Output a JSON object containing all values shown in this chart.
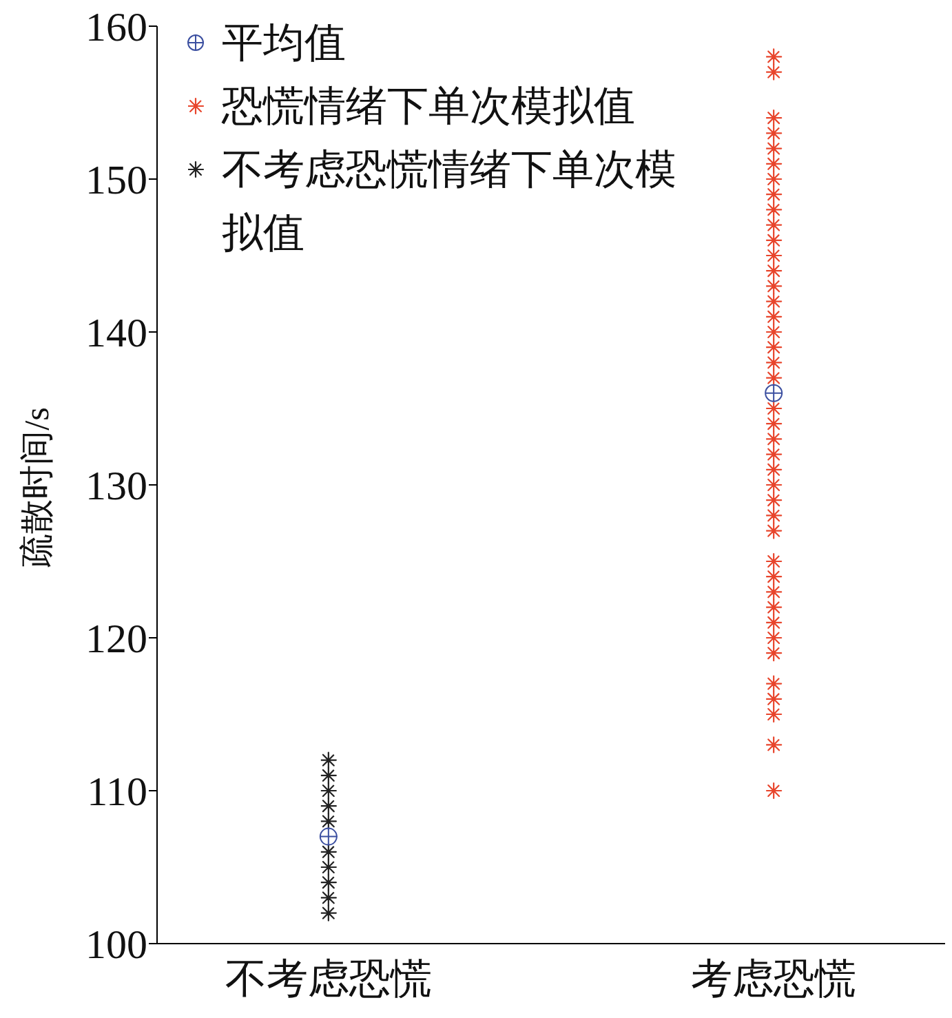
{
  "chart_data": {
    "type": "scatter",
    "ylabel": "疏散时间/s",
    "categories": [
      "不考虑恐慌",
      "考虑恐慌"
    ],
    "ylim": [
      100,
      160
    ],
    "yticks": [
      100,
      110,
      120,
      130,
      140,
      150,
      160
    ],
    "legend": "top left",
    "series": [
      {
        "name": "平均值",
        "color": "#3b4fa0",
        "marker": "circle",
        "x": [
          "不考虑恐慌",
          "考虑恐慌"
        ],
        "values": [
          107,
          136
        ]
      },
      {
        "name": "恐慌情绪下单次模拟值",
        "color": "#e8452c",
        "marker": "cross",
        "x": [
          "考虑恐慌",
          "考虑恐慌",
          "考虑恐慌",
          "考虑恐慌",
          "考虑恐慌",
          "考虑恐慌",
          "考虑恐慌",
          "考虑恐慌",
          "考虑恐慌",
          "考虑恐慌",
          "考虑恐慌",
          "考虑恐慌",
          "考虑恐慌",
          "考虑恐慌",
          "考虑恐慌",
          "考虑恐慌",
          "考虑恐慌",
          "考虑恐慌",
          "考虑恐慌",
          "考虑恐慌",
          "考虑恐慌",
          "考虑恐慌",
          "考虑恐慌",
          "考虑恐慌",
          "考虑恐慌",
          "考虑恐慌",
          "考虑恐慌",
          "考虑恐慌",
          "考虑恐慌",
          "考虑恐慌",
          "考虑恐慌",
          "考虑恐慌",
          "考虑恐慌",
          "考虑恐慌",
          "考虑恐慌",
          "考虑恐慌",
          "考虑恐慌",
          "考虑恐慌",
          "考虑恐慌",
          "考虑恐慌",
          "考虑恐慌"
        ],
        "values": [
          110,
          113,
          115,
          116,
          117,
          119,
          120,
          121,
          122,
          123,
          124,
          125,
          127,
          128,
          129,
          130,
          131,
          132,
          133,
          134,
          135,
          137,
          138,
          139,
          140,
          141,
          142,
          143,
          144,
          145,
          146,
          147,
          148,
          149,
          150,
          151,
          152,
          153,
          154,
          157,
          158
        ]
      },
      {
        "name": "不考虑恐慌情绪下单次模拟值",
        "color": "#222222",
        "marker": "cross",
        "x": [
          "不考虑恐慌",
          "不考虑恐慌",
          "不考虑恐慌",
          "不考虑恐慌",
          "不考虑恐慌",
          "不考虑恐慌",
          "不考虑恐慌",
          "不考虑恐慌",
          "不考虑恐慌",
          "不考虑恐慌"
        ],
        "values": [
          102,
          103,
          104,
          105,
          106,
          108,
          109,
          110,
          111,
          112
        ]
      }
    ]
  }
}
